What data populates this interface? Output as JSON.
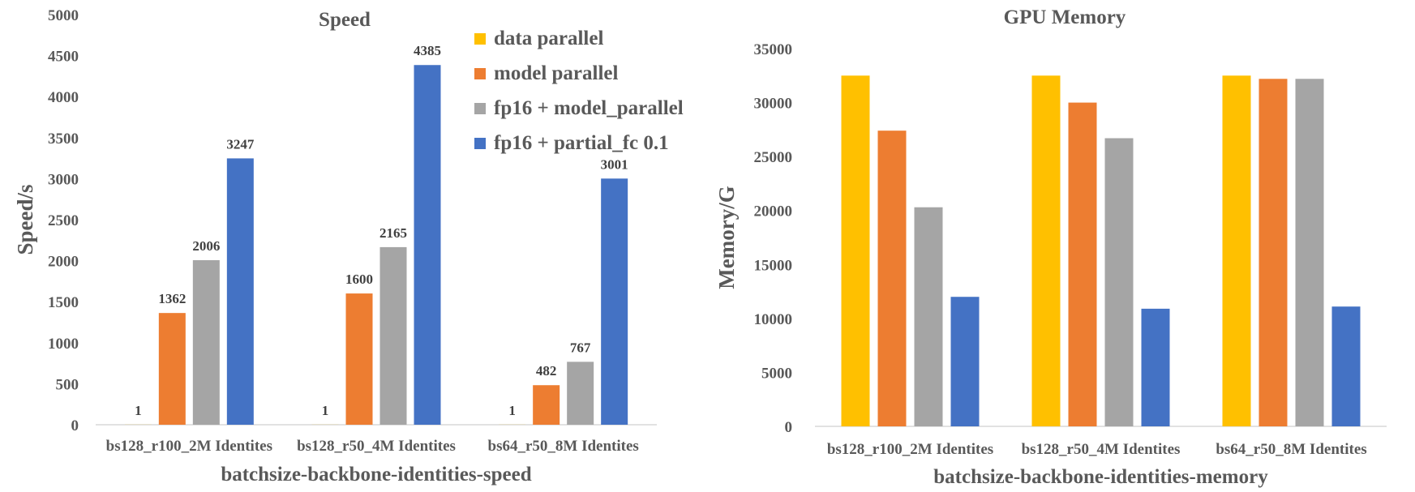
{
  "colors": {
    "data parallel": "#FFC000",
    "model parallel": "#ED7D31",
    "fp16 + model_parallel": "#A5A5A5",
    "fp16 + partial_fc 0.1": "#4472C4"
  },
  "legend": {
    "entries": [
      "data parallel",
      "model parallel",
      "fp16 + model_parallel",
      "fp16 + partial_fc 0.1"
    ]
  },
  "chart_data": [
    {
      "type": "bar",
      "title": "Speed",
      "xlabel": "batchsize-backbone-identities-speed",
      "ylabel": "Speed/s",
      "ylim": [
        0,
        5000
      ],
      "yticks": [
        0,
        500,
        1000,
        1500,
        2000,
        2500,
        3000,
        3500,
        4000,
        4500,
        5000
      ],
      "categories": [
        "bs128_r100_2M Identites",
        "bs128_r50_4M Identites",
        "bs64_r50_8M Identites"
      ],
      "series": [
        {
          "name": "data parallel",
          "values": [
            1,
            1,
            1
          ]
        },
        {
          "name": "model parallel",
          "values": [
            1362,
            1600,
            482
          ]
        },
        {
          "name": "fp16 + model_parallel",
          "values": [
            2006,
            2165,
            767
          ]
        },
        {
          "name": "fp16 + partial_fc 0.1",
          "values": [
            3247,
            4385,
            3001
          ]
        }
      ],
      "data_labels": true,
      "legend_position": "top-right"
    },
    {
      "type": "bar",
      "title": "GPU Memory",
      "xlabel": "batchsize-backbone-identities-memory",
      "ylabel": "Memory/G",
      "ylim": [
        0,
        35000
      ],
      "yticks": [
        0,
        5000,
        10000,
        15000,
        20000,
        25000,
        30000,
        35000
      ],
      "categories": [
        "bs128_r100_2M Identites",
        "bs128_r50_4M Identites",
        "bs64_r50_8M Identites"
      ],
      "series": [
        {
          "name": "data parallel",
          "values": [
            32500,
            32500,
            32500
          ]
        },
        {
          "name": "model parallel",
          "values": [
            27400,
            30000,
            32200
          ]
        },
        {
          "name": "fp16 + model_parallel",
          "values": [
            20300,
            26700,
            32200
          ]
        },
        {
          "name": "fp16 + partial_fc 0.1",
          "values": [
            12000,
            10900,
            11100
          ]
        }
      ],
      "data_labels": false
    }
  ]
}
